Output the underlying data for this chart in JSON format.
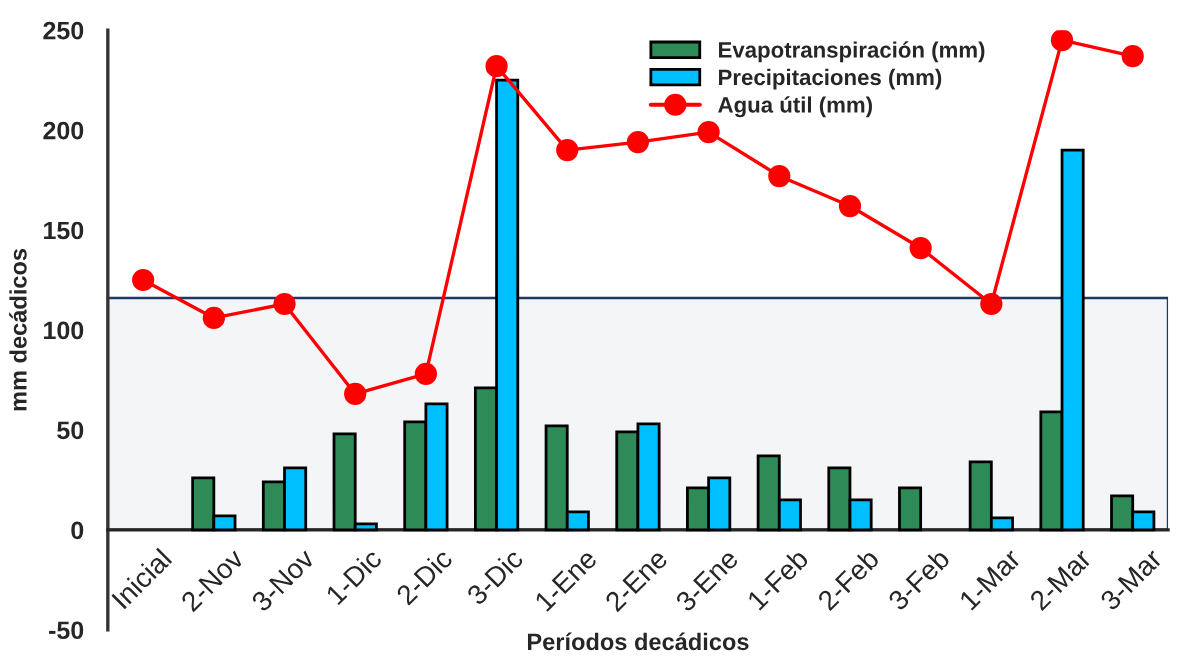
{
  "chart_data": {
    "type": "bar",
    "xlabel": "Períodos decádicos",
    "ylabel": "mm decádicos",
    "categories": [
      "Inicial",
      "2-Nov",
      "3-Nov",
      "1-Dic",
      "2-Dic",
      "3-Dic",
      "1-Ene",
      "2-Ene",
      "3-Ene",
      "1-Feb",
      "2-Feb",
      "3-Feb",
      "1-Mar",
      "2-Mar",
      "3-Mar"
    ],
    "series": [
      {
        "name": "Evapotranspiración (mm)",
        "color": "#2e8b57",
        "values": [
          null,
          26,
          24,
          48,
          54,
          71,
          52,
          49,
          21,
          37,
          31,
          21,
          34,
          59,
          17
        ]
      },
      {
        "name": "Precipitaciones (mm)",
        "color": "#00bfff",
        "values": [
          null,
          7,
          31,
          3,
          63,
          225,
          9,
          53,
          26,
          15,
          15,
          null,
          6,
          190,
          9
        ]
      },
      {
        "name": "Agua útil (mm)",
        "type": "line",
        "color": "#ff0000",
        "marker": "circle",
        "values": [
          125,
          106,
          113,
          68,
          78,
          232,
          190,
          194,
          199,
          177,
          162,
          141,
          113,
          245,
          237
        ]
      }
    ],
    "ylim": [
      -50,
      250
    ],
    "yticks": [
      -50,
      0,
      50,
      100,
      150,
      200,
      250
    ],
    "bands": [
      {
        "axis": "y",
        "from": 0,
        "to": 116,
        "color": "#1f3864"
      }
    ],
    "legend": "top",
    "grid": false
  }
}
